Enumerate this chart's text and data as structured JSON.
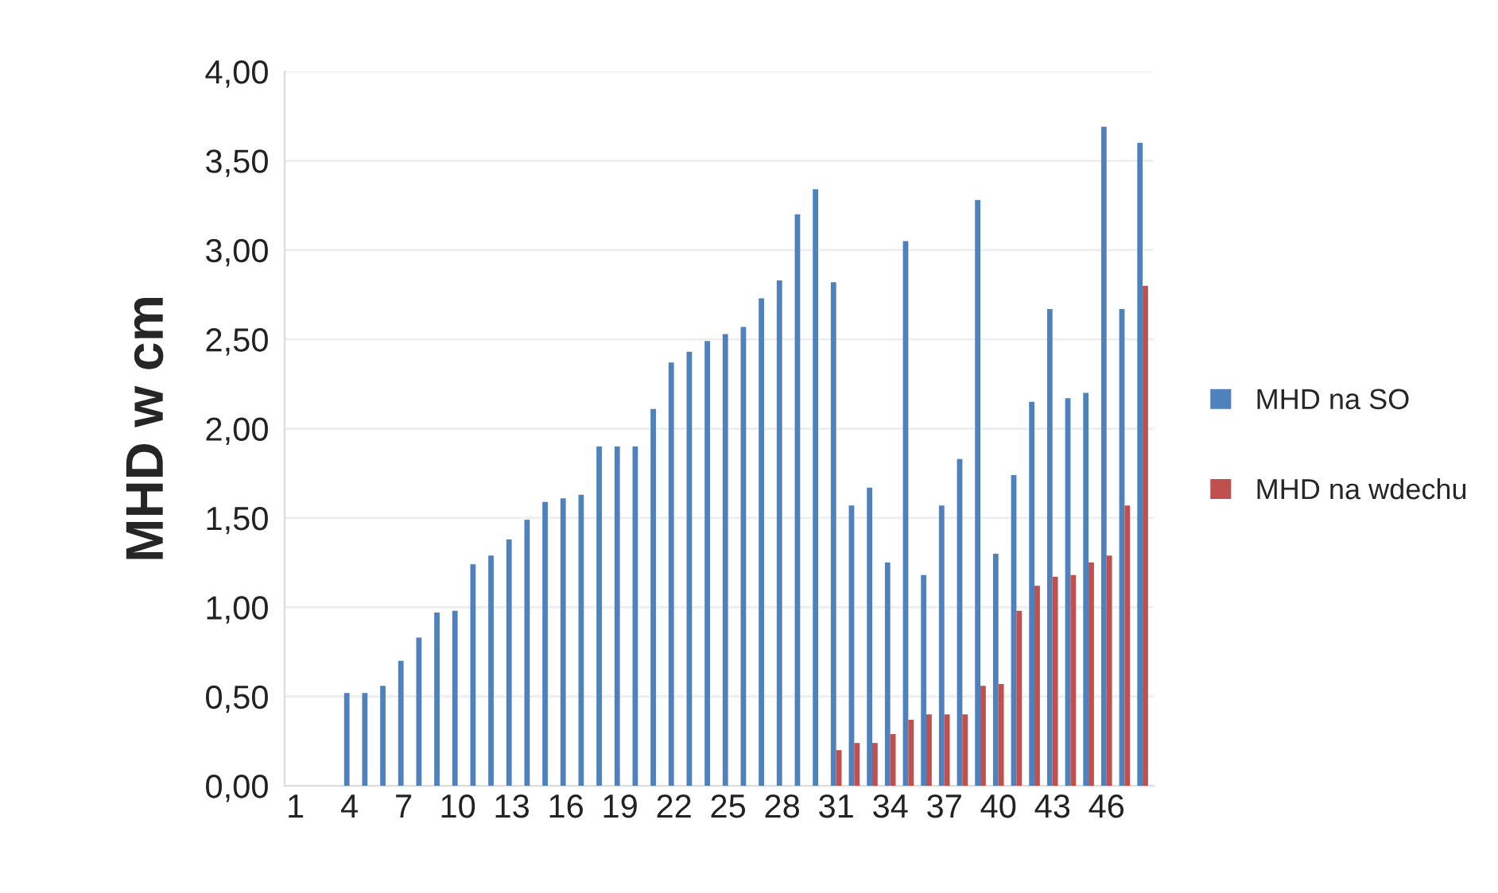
{
  "chart_data": {
    "type": "bar",
    "ylabel": "MHD w cm",
    "categories": [
      "1",
      null,
      null,
      "4",
      null,
      null,
      "7",
      null,
      null,
      "10",
      null,
      null,
      "13",
      null,
      null,
      "16",
      null,
      null,
      "19",
      null,
      null,
      "22",
      null,
      null,
      "25",
      null,
      null,
      "28",
      null,
      null,
      "31",
      null,
      null,
      "34",
      null,
      null,
      "37",
      null,
      null,
      "40",
      null,
      null,
      "43",
      null,
      null,
      "46",
      null,
      null
    ],
    "series": [
      {
        "name": "MHD na SO",
        "color": "#4f81bd",
        "values": [
          null,
          null,
          null,
          0.52,
          0.52,
          0.56,
          0.7,
          0.83,
          0.97,
          0.98,
          1.24,
          1.29,
          1.38,
          1.49,
          1.59,
          1.61,
          1.63,
          1.9,
          1.9,
          1.9,
          2.11,
          2.37,
          2.43,
          2.49,
          2.53,
          2.57,
          2.73,
          2.83,
          3.2,
          3.34,
          2.82,
          1.57,
          1.67,
          1.25,
          3.05,
          1.18,
          1.57,
          1.83,
          3.28,
          1.3,
          1.74,
          2.15,
          2.67,
          2.17,
          2.2,
          3.69,
          2.67,
          3.6
        ]
      },
      {
        "name": "MHD na wdechu",
        "color": "#c0504d",
        "values": [
          null,
          null,
          null,
          null,
          null,
          null,
          null,
          null,
          null,
          null,
          null,
          null,
          null,
          null,
          null,
          null,
          null,
          null,
          null,
          null,
          null,
          null,
          null,
          null,
          null,
          null,
          null,
          null,
          null,
          null,
          0.2,
          0.24,
          0.24,
          0.29,
          0.37,
          0.4,
          0.4,
          0.4,
          0.56,
          0.57,
          0.98,
          1.12,
          1.17,
          1.18,
          1.25,
          1.29,
          1.57,
          2.8
        ]
      }
    ],
    "ylim": [
      0,
      4
    ],
    "yticks": [
      {
        "value": 0,
        "label": "0,00"
      },
      {
        "value": 0.5,
        "label": "0,50"
      },
      {
        "value": 1,
        "label": "1,00"
      },
      {
        "value": 1.5,
        "label": "1,50"
      },
      {
        "value": 2,
        "label": "2,00"
      },
      {
        "value": 2.5,
        "label": "2,50"
      },
      {
        "value": 3,
        "label": "3,00"
      },
      {
        "value": 3.5,
        "label": "3,50"
      },
      {
        "value": 4,
        "label": "4,00"
      }
    ],
    "grid": "y",
    "legend": "right"
  }
}
